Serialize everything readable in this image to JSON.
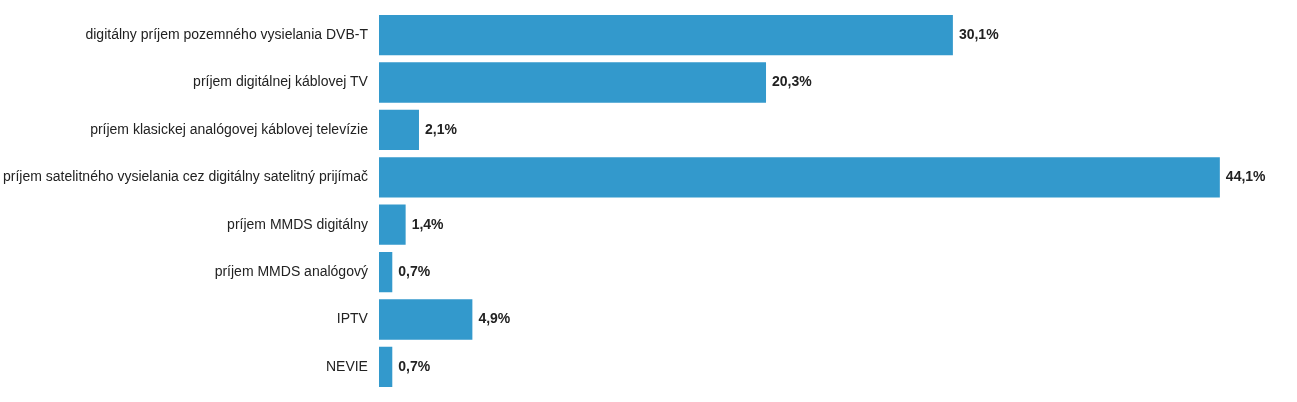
{
  "chart_data": {
    "type": "bar",
    "orientation": "horizontal",
    "categories": [
      "digitálny príjem pozemného vysielania DVB-T",
      "príjem digitálnej káblovej TV",
      "príjem klasickej analógovej káblovej televízie",
      "príjem satelitného vysielania cez digitálny satelitný prijímač",
      "príjem MMDS digitálny",
      "príjem MMDS analógový",
      "IPTV",
      "NEVIE"
    ],
    "values": [
      30.1,
      20.3,
      2.1,
      44.1,
      1.4,
      0.7,
      4.9,
      0.7
    ],
    "value_labels": [
      "30,1%",
      "20,3%",
      "2,1%",
      "44,1%",
      "1,4%",
      "0,7%",
      "4,9%",
      "0,7%"
    ],
    "color": "#3399cc"
  }
}
